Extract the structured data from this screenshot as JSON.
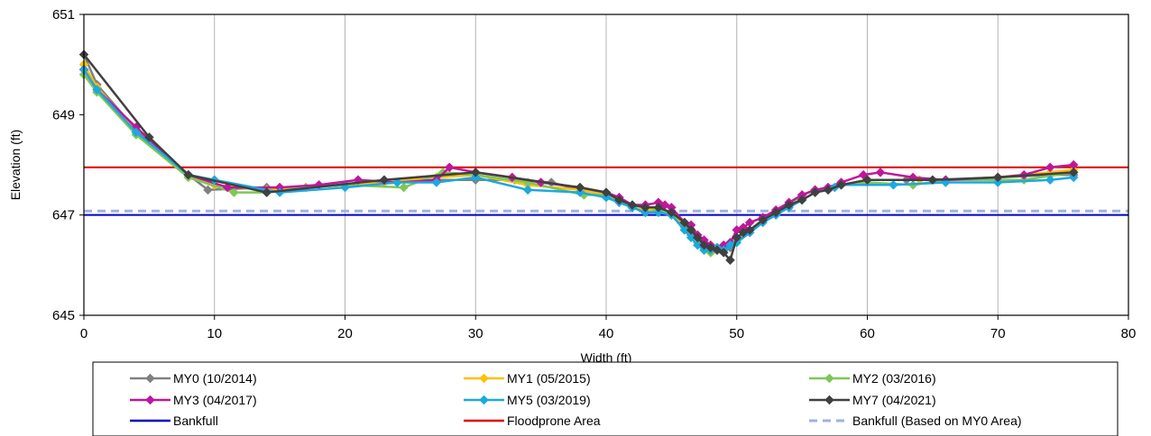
{
  "chart_data": {
    "type": "line",
    "title": "",
    "xlabel": "Width (ft)",
    "ylabel": "Elevation (ft)",
    "xlim": [
      0,
      80
    ],
    "ylim": [
      645,
      651
    ],
    "xticks": [
      0,
      10,
      20,
      30,
      40,
      50,
      60,
      70,
      80
    ],
    "yticks": [
      645,
      647,
      649,
      651
    ],
    "grid": "vertical",
    "legend_position": "bottom",
    "series": [
      {
        "name": "MY0 (10/2014)",
        "color": "#808080",
        "marker": "diamond",
        "x": [
          0,
          1,
          4,
          8,
          9.5,
          14,
          17,
          20,
          23,
          27,
          30,
          33,
          35.8,
          38,
          40,
          41,
          42,
          43,
          44,
          45,
          46,
          46.5,
          47,
          47.5,
          48,
          48.5,
          49,
          49.5,
          50,
          51,
          52,
          53,
          54,
          55,
          56,
          58,
          60,
          63,
          66,
          70,
          74,
          75.8
        ],
        "y": [
          650.2,
          649.6,
          648.7,
          647.8,
          647.5,
          647.55,
          647.55,
          647.6,
          647.65,
          647.7,
          647.7,
          647.7,
          647.65,
          647.5,
          647.4,
          647.3,
          647.2,
          647.15,
          647.1,
          647.0,
          646.8,
          646.7,
          646.55,
          646.4,
          646.3,
          646.3,
          646.3,
          646.35,
          646.5,
          646.7,
          646.9,
          647.05,
          647.2,
          647.4,
          647.5,
          647.6,
          647.7,
          647.7,
          647.7,
          647.75,
          647.8,
          647.8
        ]
      },
      {
        "name": "MY1 (05/2015)",
        "color": "#FFC000",
        "marker": "diamond",
        "x": [
          0,
          1,
          4,
          8,
          10,
          14,
          17,
          20,
          23,
          27,
          30,
          34,
          38,
          40,
          41,
          42,
          43,
          44,
          45,
          46,
          46.5,
          47,
          47.5,
          48,
          48.5,
          49,
          49.5,
          50,
          51,
          52,
          53,
          54,
          55,
          56,
          58,
          60,
          64,
          66,
          70,
          74,
          75.8
        ],
        "y": [
          650.0,
          649.55,
          648.65,
          647.75,
          647.6,
          647.5,
          647.55,
          647.6,
          647.65,
          647.75,
          647.8,
          647.6,
          647.5,
          647.4,
          647.3,
          647.15,
          647.1,
          647.15,
          647.0,
          646.8,
          646.6,
          646.45,
          646.3,
          646.25,
          646.3,
          646.35,
          646.4,
          646.5,
          646.7,
          646.9,
          647.05,
          647.2,
          647.4,
          647.5,
          647.6,
          647.7,
          647.7,
          647.7,
          647.75,
          647.85,
          647.9
        ]
      },
      {
        "name": "MY2 (03/2016)",
        "color": "#7DC855",
        "marker": "diamond",
        "x": [
          0,
          1,
          4,
          8,
          11.5,
          14,
          17,
          20,
          24.5,
          27.5,
          30,
          34,
          38.3,
          40,
          41,
          42,
          43,
          44,
          45,
          46,
          46.5,
          47,
          47.5,
          48,
          48.5,
          49,
          49.5,
          50,
          51,
          52,
          53,
          54,
          55,
          56,
          58,
          60,
          63.5,
          66,
          70,
          72,
          75.8
        ],
        "y": [
          649.8,
          649.45,
          648.6,
          647.75,
          647.45,
          647.45,
          647.55,
          647.6,
          647.55,
          647.85,
          647.8,
          647.65,
          647.4,
          647.4,
          647.3,
          647.15,
          647.05,
          647.1,
          647.0,
          646.75,
          646.6,
          646.45,
          646.35,
          646.25,
          646.3,
          646.3,
          646.4,
          646.5,
          646.7,
          646.9,
          647.05,
          647.2,
          647.4,
          647.5,
          647.6,
          647.65,
          647.6,
          647.7,
          647.7,
          647.7,
          647.85
        ]
      },
      {
        "name": "MY3 (04/2017)",
        "color": "#C0169C",
        "marker": "diamond",
        "x": [
          0,
          1,
          4,
          8,
          11,
          15,
          18,
          21,
          24,
          27,
          28,
          30,
          32.8,
          35,
          38,
          40,
          41,
          42,
          43,
          44,
          44.5,
          45,
          46,
          46.5,
          47,
          47.5,
          48,
          48.5,
          49,
          49.5,
          50,
          50.5,
          51,
          52,
          53,
          54,
          55,
          56,
          57,
          58,
          59.7,
          61,
          63.5,
          66,
          70,
          72,
          74,
          75.8
        ],
        "y": [
          649.9,
          649.5,
          648.75,
          647.8,
          647.55,
          647.55,
          647.6,
          647.7,
          647.65,
          647.7,
          647.95,
          647.85,
          647.75,
          647.65,
          647.55,
          647.45,
          647.35,
          647.2,
          647.2,
          647.25,
          647.2,
          647.15,
          646.85,
          646.8,
          646.6,
          646.5,
          646.4,
          646.35,
          646.4,
          646.45,
          646.7,
          646.75,
          646.85,
          646.95,
          647.1,
          647.25,
          647.4,
          647.5,
          647.55,
          647.65,
          647.8,
          647.85,
          647.75,
          647.7,
          647.75,
          647.8,
          647.95,
          648.0
        ]
      },
      {
        "name": "MY5 (03/2019)",
        "color": "#1CA8E0",
        "marker": "diamond",
        "x": [
          0,
          1,
          4,
          8,
          10,
          15,
          20,
          24,
          27,
          30,
          34,
          38,
          40,
          41,
          42,
          43,
          44,
          45,
          46,
          46.5,
          47,
          47.5,
          48,
          48.5,
          49,
          49.5,
          50,
          51,
          52,
          53,
          54,
          55,
          56,
          57.5,
          58,
          62,
          66,
          70,
          74,
          75.8
        ],
        "y": [
          649.9,
          649.5,
          648.65,
          647.8,
          647.7,
          647.45,
          647.55,
          647.65,
          647.65,
          647.75,
          647.5,
          647.45,
          647.35,
          647.25,
          647.15,
          647.05,
          647.05,
          647.0,
          646.7,
          646.55,
          646.4,
          646.3,
          646.3,
          646.35,
          646.3,
          646.4,
          646.45,
          646.65,
          646.85,
          647.0,
          647.15,
          647.3,
          647.45,
          647.55,
          647.6,
          647.6,
          647.65,
          647.65,
          647.7,
          647.75
        ]
      },
      {
        "name": "MY7 (04/2021)",
        "color": "#404040",
        "marker": "diamond",
        "x": [
          0,
          5,
          8,
          14,
          23,
          30,
          38,
          40,
          41,
          42,
          43,
          44,
          45,
          46,
          46.5,
          47,
          47.5,
          48,
          48.5,
          49,
          49.5,
          50,
          50.5,
          51,
          52,
          53,
          54,
          55,
          56,
          57,
          58,
          60,
          65,
          70,
          75.8
        ],
        "y": [
          650.2,
          648.55,
          647.8,
          647.45,
          647.7,
          647.85,
          647.55,
          647.45,
          647.3,
          647.2,
          647.15,
          647.15,
          647.05,
          646.85,
          646.7,
          646.55,
          646.4,
          646.35,
          646.3,
          646.25,
          646.1,
          646.55,
          646.65,
          646.7,
          646.9,
          647.05,
          647.2,
          647.3,
          647.45,
          647.5,
          647.6,
          647.7,
          647.7,
          647.75,
          647.85
        ]
      }
    ],
    "reference_lines": [
      {
        "name": "Bankfull",
        "y": 647.0,
        "color": "#0000C8",
        "style": "solid"
      },
      {
        "name": "Floodprone Area",
        "y": 647.95,
        "color": "#E00000",
        "style": "solid"
      },
      {
        "name": "Bankfull (Based on MY0 Area)",
        "y": 647.08,
        "color": "#9DB3E0",
        "style": "dashed"
      }
    ]
  }
}
